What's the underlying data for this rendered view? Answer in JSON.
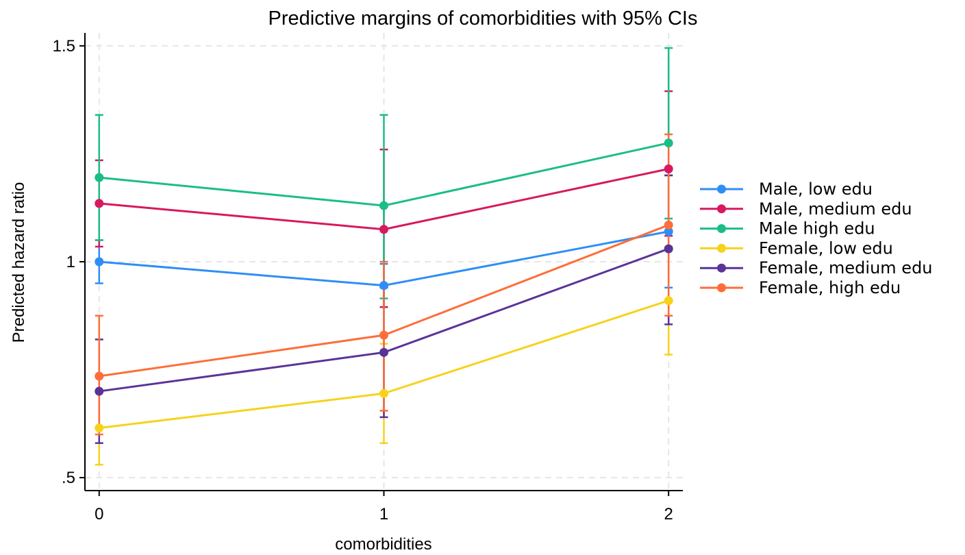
{
  "chart_data": {
    "type": "line",
    "title": "Predictive margins of comorbidities with 95% CIs",
    "xlabel": "comorbidities",
    "ylabel": "Predicted hazard ratio",
    "x": [
      0,
      1,
      2
    ],
    "x_tick_labels": [
      "0",
      "1",
      "2"
    ],
    "y_ticks": [
      0.5,
      1,
      1.5
    ],
    "y_tick_labels": [
      ".5",
      "1",
      "1.5"
    ],
    "xlim": [
      -0.05,
      2.05
    ],
    "ylim": [
      0.47,
      1.53
    ],
    "grid": true,
    "legend_position": "right",
    "series": [
      {
        "name": "Male, low edu",
        "color": "#2e8ef7",
        "values": [
          1.0,
          0.945,
          1.07
        ],
        "ci_low": [
          0.95,
          0.895,
          0.94
        ],
        "ci_high": [
          1.05,
          0.995,
          1.2
        ]
      },
      {
        "name": "Male, medium edu",
        "color": "#d8185f",
        "values": [
          1.135,
          1.075,
          1.215
        ],
        "ci_low": [
          1.035,
          0.895,
          1.06
        ],
        "ci_high": [
          1.235,
          1.26,
          1.395
        ]
      },
      {
        "name": "Male high edu",
        "color": "#1bbd85",
        "values": [
          1.195,
          1.13,
          1.275
        ],
        "ci_low": [
          1.05,
          0.915,
          1.1
        ],
        "ci_high": [
          1.34,
          1.34,
          1.495
        ]
      },
      {
        "name": "Female, low edu",
        "color": "#f7d21a",
        "values": [
          0.615,
          0.695,
          0.91
        ],
        "ci_low": [
          0.53,
          0.58,
          0.785
        ],
        "ci_high": [
          0.7,
          0.81,
          1.035
        ]
      },
      {
        "name": "Female, medium edu",
        "color": "#5a3399",
        "values": [
          0.7,
          0.79,
          1.03
        ],
        "ci_low": [
          0.58,
          0.64,
          0.855
        ],
        "ci_high": [
          0.82,
          0.94,
          1.2
        ]
      },
      {
        "name": "Female, high edu",
        "color": "#ff6d3a",
        "values": [
          0.735,
          0.83,
          1.085
        ],
        "ci_low": [
          0.6,
          0.655,
          0.875
        ],
        "ci_high": [
          0.875,
          1.0,
          1.295
        ]
      }
    ]
  }
}
